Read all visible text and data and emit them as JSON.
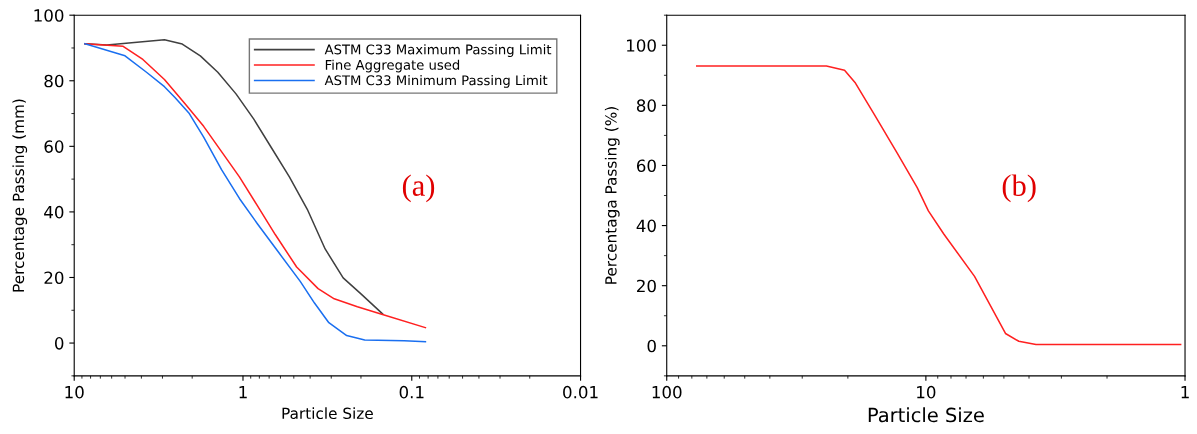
{
  "chart_data": [
    {
      "type": "line",
      "xlabel": "Particle Size",
      "ylabel": "Percentage Passing (mm)",
      "log": "x",
      "xlim": [
        10,
        0.01
      ],
      "xticks": [
        10,
        1,
        0.1,
        0.01
      ],
      "ylim": [
        -10,
        100
      ],
      "yticks": [
        0,
        20,
        40,
        60,
        80,
        100
      ],
      "grid": false,
      "legend": "top right",
      "marker": "none",
      "line_style": "solid",
      "annotations": [
        "(a)"
      ],
      "series": [
        {
          "name": "ASTM C33 Maximum Passing Limit",
          "color": "#404040",
          "x": [
            8.64,
            6.4,
            2.92,
            2.29,
            1.79,
            1.41,
            1.1,
            0.863,
            0.677,
            0.531,
            0.416,
            0.326,
            0.255,
            0.2,
            0.149
          ],
          "values": [
            91.3,
            90.9,
            92.5,
            91.2,
            87.6,
            82.6,
            76.0,
            68.3,
            59.5,
            50.7,
            40.8,
            28.7,
            19.9,
            15.0,
            8.9
          ]
        },
        {
          "name": "Fine Aggregate used",
          "color": "#ff2020",
          "x": [
            8.64,
            5.13,
            3.92,
            2.92,
            2.18,
            1.71,
            1.34,
            1.05,
            0.822,
            0.644,
            0.481,
            0.359,
            0.288,
            0.21,
            0.149,
            0.083
          ],
          "values": [
            91.3,
            90.5,
            86.5,
            80.4,
            72.7,
            66.1,
            58.4,
            50.7,
            41.9,
            33.1,
            23.2,
            16.6,
            13.5,
            11.1,
            8.7,
            4.7
          ]
        },
        {
          "name": "ASTM C33 Minimum Passing Limit",
          "color": "#1a6ff0",
          "x": [
            8.64,
            5.0,
            3.73,
            2.92,
            2.53,
            2.08,
            1.71,
            1.34,
            1.05,
            0.822,
            0.614,
            0.458,
            0.377,
            0.31,
            0.243,
            0.19,
            0.111,
            0.083
          ],
          "values": [
            91.3,
            87.6,
            82.6,
            78.2,
            74.9,
            70.0,
            62.8,
            52.9,
            44.1,
            36.4,
            27.6,
            18.8,
            12.2,
            6.2,
            2.3,
            0.9,
            0.7,
            0.4
          ]
        }
      ]
    },
    {
      "type": "line",
      "xlabel": "Particle Size",
      "ylabel": "Percentaga Passing (%)",
      "log": "x",
      "xlim": [
        100,
        1
      ],
      "xticks": [
        100,
        10,
        1
      ],
      "ylim": [
        -10,
        110
      ],
      "yticks": [
        0,
        20,
        40,
        60,
        80,
        100
      ],
      "grid": false,
      "legend": false,
      "marker": "none",
      "line_style": "solid",
      "annotations": [
        "(b)"
      ],
      "series": [
        {
          "color": "#ff2020",
          "x": [
            76.6,
            24.2,
            20.6,
            18.7,
            15.8,
            12.9,
            10.8,
            9.78,
            8.53,
            6.49,
            4.93,
            4.38,
            3.76,
            1.04
          ],
          "values": [
            93.1,
            93.1,
            91.7,
            87.4,
            76.9,
            64.1,
            52.6,
            44.9,
            37.2,
            23.1,
            4.1,
            1.5,
            0.4,
            0.4
          ]
        }
      ]
    }
  ]
}
